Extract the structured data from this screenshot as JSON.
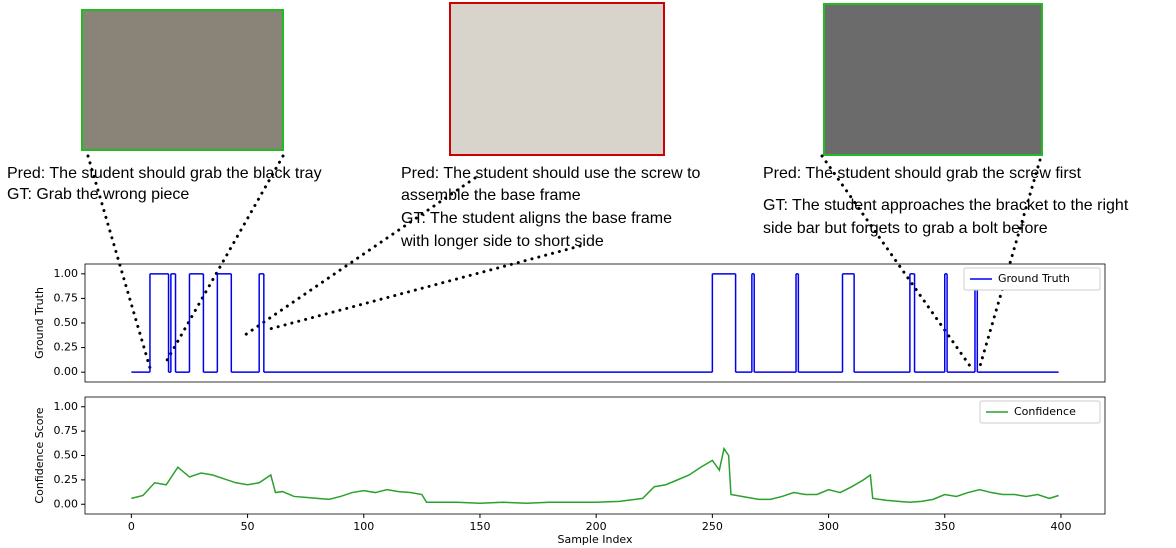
{
  "chart_data": [
    {
      "type": "line",
      "drawstyle": "steps-post",
      "ylabel": "Ground Truth",
      "xlim": [
        -19.95,
        418.95
      ],
      "ylim": [
        -0.1,
        1.1
      ],
      "yticks": [
        {
          "value": 0,
          "label": "0.00"
        },
        {
          "value": 0.25,
          "label": "0.25"
        },
        {
          "value": 0.5,
          "label": "0.50"
        },
        {
          "value": 0.75,
          "label": "0.75"
        },
        {
          "value": 1,
          "label": "1.00"
        }
      ],
      "legend": "upper right",
      "series": [
        {
          "name": "Ground Truth",
          "color": "#0000ee",
          "x": [
            0,
            8,
            16,
            17,
            19,
            25,
            31,
            37,
            43,
            55,
            57,
            250,
            260,
            267,
            268,
            286,
            287,
            306,
            311,
            335,
            337,
            350,
            351,
            363,
            364,
            399
          ],
          "values": [
            0,
            1,
            0,
            1,
            0,
            1,
            0,
            1,
            0,
            1,
            0,
            1,
            0,
            1,
            0,
            1,
            0,
            1,
            0,
            1,
            0,
            1,
            0,
            1,
            0,
            0
          ]
        }
      ],
      "annotations": [
        {
          "color": "#22bb22",
          "pred": [
            "Pred: The student should grab the black tray"
          ],
          "gt": [
            "GT: Grab the wrong piece"
          ]
        },
        {
          "color": "#cc0000",
          "pred": [
            "Pred: The student should use the screw to",
            "assemble the base frame"
          ],
          "gt": [
            "GT: The student aligns the base frame",
            "with longer side to short side"
          ]
        },
        {
          "color": "#22bb22",
          "pred": [
            "Pred: The student should grab the screw first"
          ],
          "gt": [
            "GT: The student approaches the bracket to the right",
            "side bar but forgets to grab a bolt before"
          ]
        }
      ]
    },
    {
      "type": "line",
      "ylabel": "Confidence Score",
      "xlabel": "Sample Index",
      "xlim": [
        -19.95,
        418.95
      ],
      "ylim": [
        -0.1,
        1.1
      ],
      "xticks": [
        0,
        50,
        100,
        150,
        200,
        250,
        300,
        350,
        400
      ],
      "yticks": [
        {
          "value": 0,
          "label": "0.00"
        },
        {
          "value": 0.25,
          "label": "0.25"
        },
        {
          "value": 0.5,
          "label": "0.50"
        },
        {
          "value": 0.75,
          "label": "0.75"
        },
        {
          "value": 1,
          "label": "1.00"
        }
      ],
      "legend": "upper right",
      "series": [
        {
          "name": "Confidence",
          "color": "#2ca02c",
          "x": [
            0,
            5,
            10,
            15,
            20,
            25,
            30,
            35,
            40,
            45,
            50,
            55,
            60,
            62,
            65,
            70,
            75,
            80,
            85,
            90,
            95,
            100,
            105,
            110,
            115,
            120,
            125,
            127,
            130,
            140,
            150,
            160,
            170,
            180,
            190,
            200,
            210,
            220,
            225,
            230,
            235,
            240,
            245,
            250,
            253,
            255,
            257,
            258,
            265,
            270,
            275,
            280,
            285,
            290,
            295,
            300,
            305,
            310,
            315,
            318,
            319,
            325,
            330,
            335,
            340,
            345,
            350,
            355,
            360,
            365,
            370,
            375,
            380,
            385,
            390,
            395,
            399
          ],
          "values": [
            0.06,
            0.09,
            0.22,
            0.2,
            0.38,
            0.28,
            0.32,
            0.3,
            0.26,
            0.22,
            0.2,
            0.22,
            0.3,
            0.12,
            0.13,
            0.08,
            0.07,
            0.06,
            0.05,
            0.08,
            0.12,
            0.14,
            0.12,
            0.15,
            0.13,
            0.12,
            0.1,
            0.02,
            0.02,
            0.02,
            0.01,
            0.02,
            0.01,
            0.02,
            0.02,
            0.02,
            0.03,
            0.06,
            0.18,
            0.2,
            0.25,
            0.3,
            0.38,
            0.45,
            0.35,
            0.57,
            0.5,
            0.1,
            0.07,
            0.05,
            0.05,
            0.08,
            0.12,
            0.1,
            0.1,
            0.15,
            0.12,
            0.18,
            0.25,
            0.3,
            0.06,
            0.04,
            0.03,
            0.02,
            0.03,
            0.05,
            0.1,
            0.08,
            0.12,
            0.15,
            0.12,
            0.1,
            0.1,
            0.08,
            0.1,
            0.06,
            0.09
          ]
        }
      ]
    }
  ]
}
